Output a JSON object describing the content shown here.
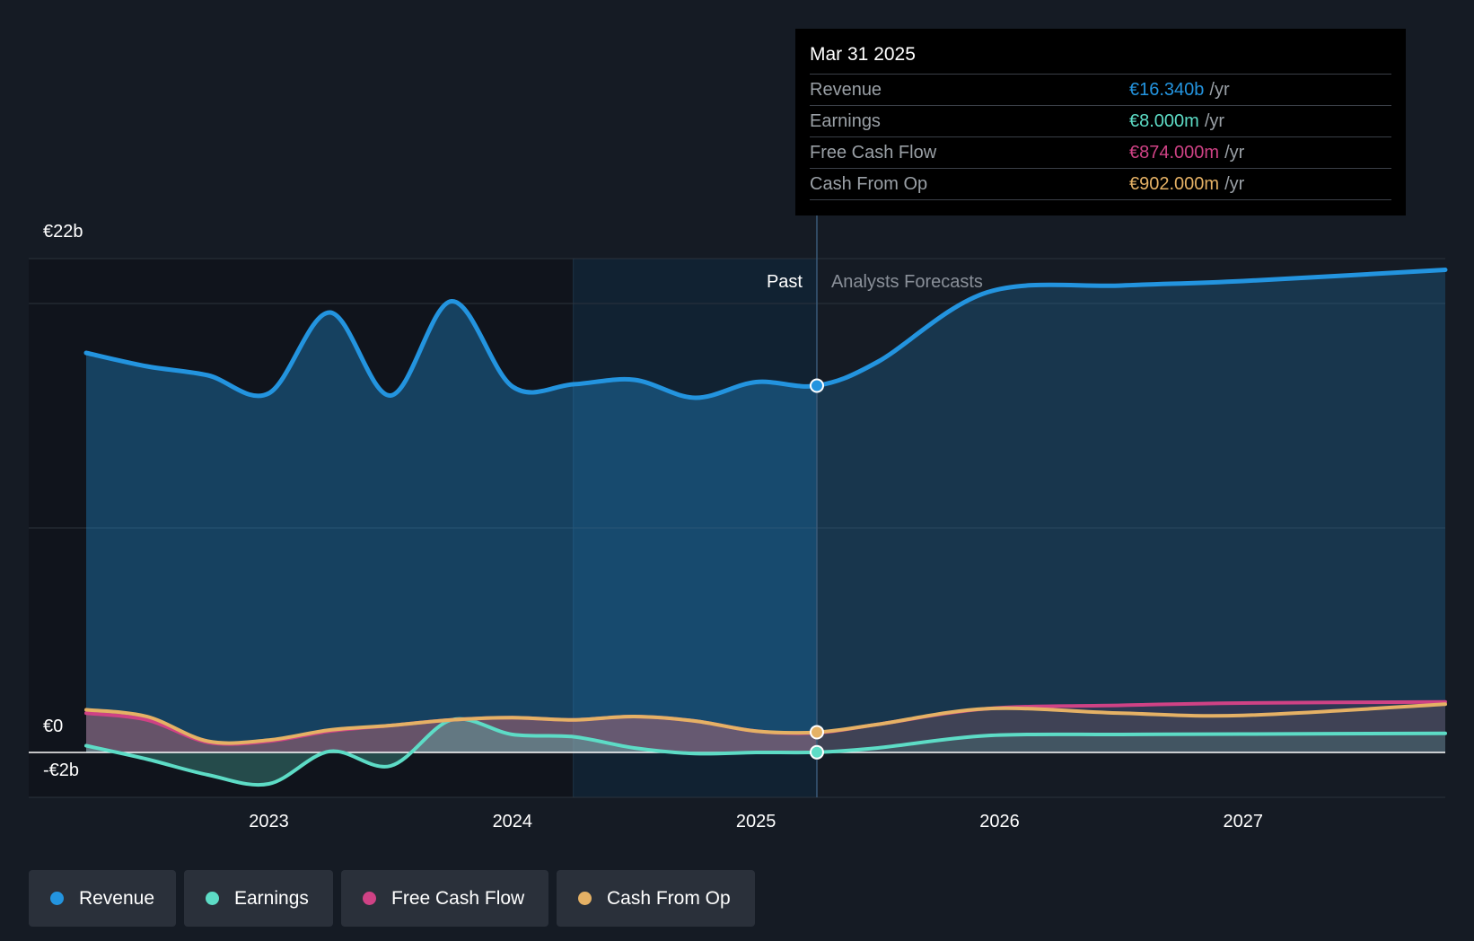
{
  "tooltip": {
    "date": "Mar 31 2025",
    "unit": "/yr",
    "rows": [
      {
        "label": "Revenue",
        "value": "€16.340b"
      },
      {
        "label": "Earnings",
        "value": "€8.000m"
      },
      {
        "label": "Free Cash Flow",
        "value": "€874.000m"
      },
      {
        "label": "Cash From Op",
        "value": "€902.000m"
      }
    ]
  },
  "legend": [
    {
      "label": "Revenue"
    },
    {
      "label": "Earnings"
    },
    {
      "label": "Free Cash Flow"
    },
    {
      "label": "Cash From Op"
    }
  ],
  "chart_data": {
    "type": "area",
    "y_axis_labels": [
      "€22b",
      "€0",
      "-€2b"
    ],
    "ylim": [
      -2,
      22
    ],
    "xlim": [
      2022.25,
      2027.83
    ],
    "x_ticks": [
      {
        "value": 2023,
        "label": "2023"
      },
      {
        "value": 2024,
        "label": "2024"
      },
      {
        "value": 2025,
        "label": "2025"
      },
      {
        "value": 2026,
        "label": "2026"
      },
      {
        "value": 2027,
        "label": "2027"
      }
    ],
    "past_label": "Past",
    "forecast_label": "Analysts Forecasts",
    "highlight_start": 2024.25,
    "divider_x": 2025.25,
    "colors": {
      "revenue": "#2394df",
      "earnings": "#5ddcc6",
      "fcf": "#cf4285",
      "cfo": "#e5b165"
    },
    "series": [
      {
        "name": "Revenue",
        "key": "revenue",
        "x": [
          2022.25,
          2022.5,
          2022.75,
          2023.0,
          2023.25,
          2023.5,
          2023.75,
          2024.0,
          2024.25,
          2024.5,
          2024.75,
          2025.0,
          2025.25,
          2025.5,
          2025.95,
          2026.5,
          2027.0,
          2027.83
        ],
        "values": [
          17.8,
          17.2,
          16.8,
          16.0,
          19.6,
          15.9,
          20.1,
          16.3,
          16.4,
          16.6,
          15.8,
          16.5,
          16.34,
          17.4,
          20.5,
          20.8,
          21.0,
          21.5
        ]
      },
      {
        "name": "Earnings",
        "key": "earnings",
        "x": [
          2022.25,
          2022.5,
          2022.75,
          2023.0,
          2023.25,
          2023.5,
          2023.75,
          2024.0,
          2024.25,
          2024.5,
          2024.75,
          2025.0,
          2025.25,
          2025.5,
          2025.95,
          2026.5,
          2027.0,
          2027.83
        ],
        "values": [
          0.3,
          -0.3,
          -1.0,
          -1.4,
          0.05,
          -0.6,
          1.45,
          0.8,
          0.7,
          0.2,
          -0.05,
          0.0,
          0.008,
          0.2,
          0.75,
          0.8,
          0.82,
          0.85
        ]
      },
      {
        "name": "Free Cash Flow",
        "key": "fcf",
        "x": [
          2022.25,
          2022.5,
          2022.75,
          2023.0,
          2023.25,
          2023.5,
          2023.75,
          2024.0,
          2024.25,
          2024.5,
          2024.75,
          2025.0,
          2025.25,
          2025.5,
          2025.95,
          2026.5,
          2027.0,
          2027.83
        ],
        "values": [
          1.75,
          1.45,
          0.45,
          0.5,
          0.95,
          1.2,
          1.45,
          1.55,
          1.45,
          1.6,
          1.4,
          0.95,
          0.874,
          1.25,
          1.95,
          2.1,
          2.2,
          2.25
        ]
      },
      {
        "name": "Cash From Op",
        "key": "cfo",
        "x": [
          2022.25,
          2022.5,
          2022.75,
          2023.0,
          2023.25,
          2023.5,
          2023.75,
          2024.0,
          2024.25,
          2024.5,
          2024.75,
          2025.0,
          2025.25,
          2025.5,
          2025.95,
          2026.5,
          2027.0,
          2027.83
        ],
        "values": [
          1.9,
          1.6,
          0.5,
          0.55,
          1.0,
          1.2,
          1.45,
          1.55,
          1.45,
          1.6,
          1.4,
          0.95,
          0.902,
          1.25,
          1.95,
          1.75,
          1.65,
          2.15
        ]
      }
    ]
  }
}
